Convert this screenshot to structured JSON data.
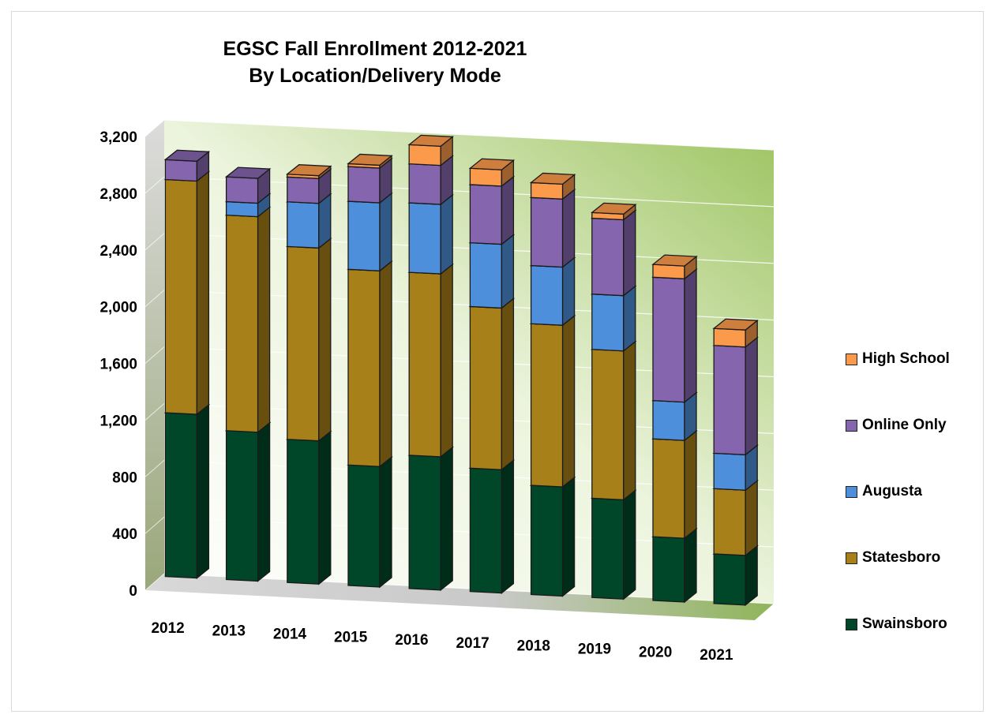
{
  "chart_data": {
    "type": "bar",
    "stacked": true,
    "style": "3d-column",
    "title": "EGSC Fall Enrollment 2012-2021",
    "subtitle": "By Location/Delivery Mode",
    "categories": [
      "2012",
      "2013",
      "2014",
      "2015",
      "2016",
      "2017",
      "2018",
      "2019",
      "2020",
      "2021"
    ],
    "series": [
      {
        "name": "Swainsboro",
        "color": "#00472a",
        "values": [
          1155,
          1050,
          1010,
          850,
          940,
          870,
          770,
          700,
          450,
          350
        ]
      },
      {
        "name": "Statesboro",
        "color": "#a7801a",
        "values": [
          1645,
          1520,
          1360,
          1380,
          1290,
          1140,
          1140,
          1050,
          690,
          460
        ]
      },
      {
        "name": "Augusta",
        "color": "#4e8fdc",
        "values": [
          0,
          95,
          315,
          480,
          490,
          450,
          410,
          390,
          270,
          250
        ]
      },
      {
        "name": "Online Only",
        "color": "#8565ad",
        "values": [
          140,
          175,
          175,
          245,
          275,
          410,
          480,
          535,
          870,
          760
        ]
      },
      {
        "name": "High School",
        "color": "#fb9a4a",
        "values": [
          0,
          0,
          20,
          20,
          135,
          115,
          105,
          40,
          90,
          120
        ]
      }
    ],
    "ylim": [
      0,
      3200
    ],
    "yticks": [
      "0",
      "400",
      "800",
      "1,200",
      "1,600",
      "2,000",
      "2,400",
      "2,800",
      "3,200"
    ],
    "grid": true,
    "legend_position": "right"
  }
}
